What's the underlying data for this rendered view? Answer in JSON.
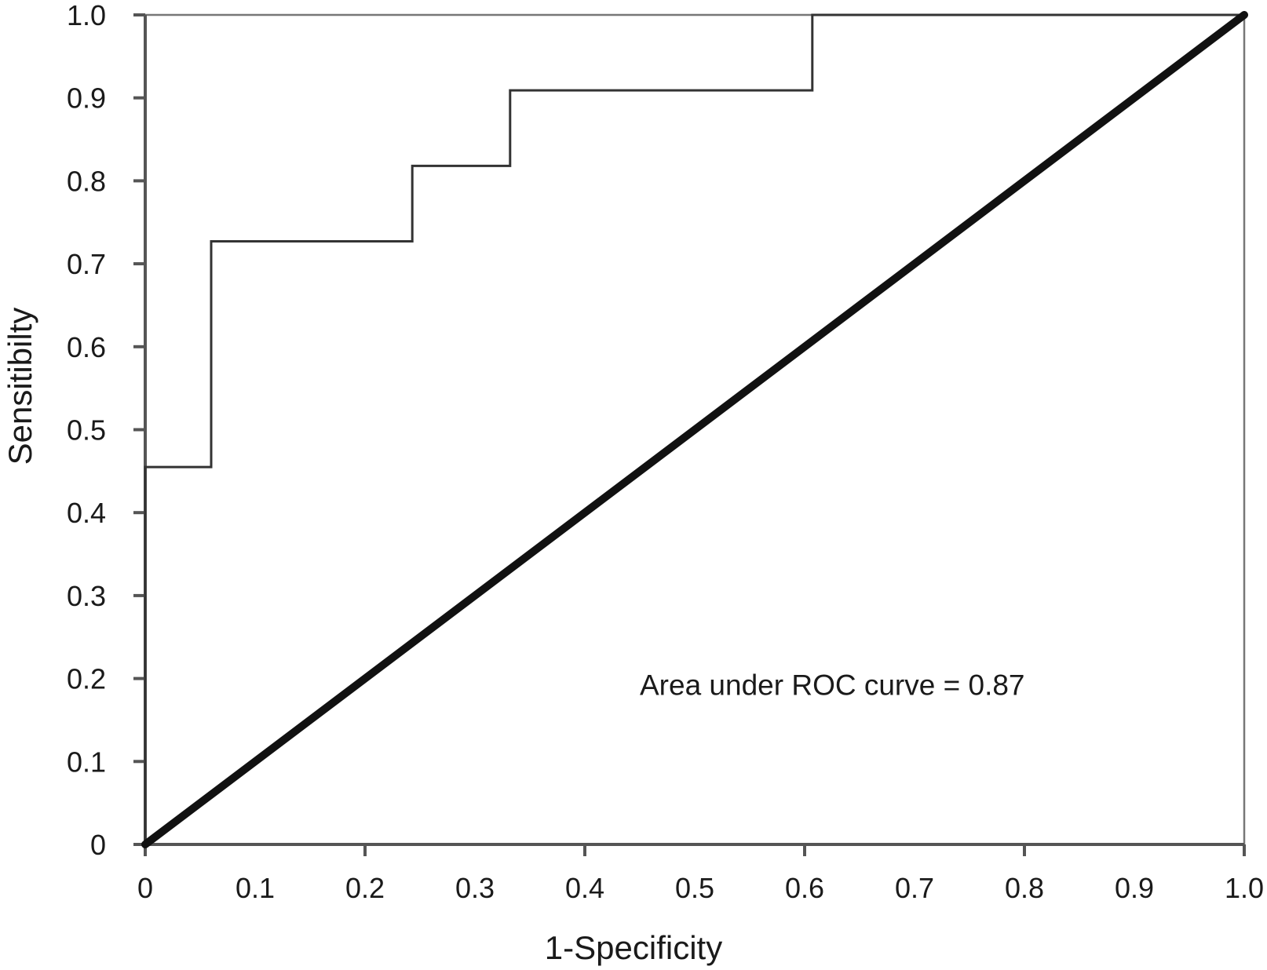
{
  "chart_data": {
    "type": "line",
    "title": "",
    "xlabel": "1-Specificity",
    "ylabel": "Sensitibilty",
    "xlim": [
      0,
      1
    ],
    "ylim": [
      0,
      1
    ],
    "x_tick_labels": [
      "0",
      "0.1",
      "0.2",
      "0.3",
      "0.4",
      "0.5",
      "0.6",
      "0.7",
      "0.8",
      "0.9",
      "1.0"
    ],
    "x_tick_values": [
      0,
      0.1,
      0.2,
      0.3,
      0.4,
      0.5,
      0.6,
      0.7,
      0.8,
      0.9,
      1.0
    ],
    "x_tick_marks": [
      0,
      0.2,
      0.4,
      0.6,
      0.8,
      1.0
    ],
    "y_tick_labels": [
      "0",
      "0.1",
      "0.2",
      "0.3",
      "0.4",
      "0.5",
      "0.6",
      "0.7",
      "0.8",
      "0.9",
      "1.0"
    ],
    "y_tick_values": [
      0,
      0.1,
      0.2,
      0.3,
      0.4,
      0.5,
      0.6,
      0.7,
      0.8,
      0.9,
      1.0
    ],
    "grid": false,
    "series": [
      {
        "style": "step",
        "color": "#333333",
        "x": [
          0,
          0,
          0.06,
          0.06,
          0.243,
          0.243,
          0.332,
          0.332,
          0.607,
          0.607,
          1.0
        ],
        "y": [
          0,
          0.455,
          0.455,
          0.727,
          0.727,
          0.818,
          0.818,
          0.909,
          0.909,
          1.0,
          1.0
        ]
      },
      {
        "style": "reference-diagonal",
        "color": "#111111",
        "x": [
          0,
          1
        ],
        "y": [
          0,
          1
        ]
      }
    ],
    "annotations": [
      {
        "text": "Area under ROC curve = 0.87",
        "x": 0.45,
        "y": 0.18
      }
    ]
  }
}
